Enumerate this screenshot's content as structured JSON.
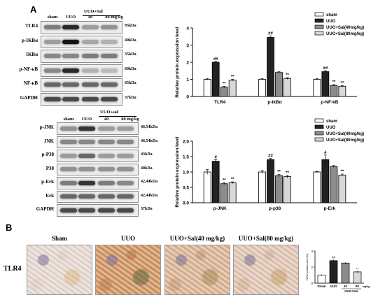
{
  "panel_a": {
    "letter": "A",
    "blot1": {
      "lanes": [
        "sham",
        "UUO",
        "40",
        "80 mg/kg"
      ],
      "treatment_label": "UUO+Sal",
      "rows": [
        {
          "name": "TLR4",
          "kda": "95kDa",
          "intensity": [
            0.5,
            0.9,
            0.35,
            0.4
          ]
        },
        {
          "name": "p-IKBα",
          "kda": "40kDa",
          "intensity": [
            0.35,
            1.0,
            0.3,
            0.25
          ]
        },
        {
          "name": "IKBα",
          "kda": "35kDa",
          "intensity": [
            0.45,
            0.45,
            0.5,
            0.5
          ]
        },
        {
          "name": "p-NF-κB",
          "kda": "60kDa",
          "intensity": [
            0.45,
            0.9,
            0.25,
            0.2
          ]
        },
        {
          "name": "NF-κB",
          "kda": "65kDa",
          "intensity": [
            0.6,
            0.6,
            0.6,
            0.6
          ]
        },
        {
          "name": "GAPDH",
          "kda": "37kDa",
          "intensity": [
            0.75,
            0.75,
            0.75,
            0.75
          ]
        }
      ]
    },
    "blot2": {
      "lanes": [
        "sham",
        "UUO",
        "40",
        "80 mg/kg"
      ],
      "treatment_label": "UUO+sal",
      "rows": [
        {
          "name": "p-JNK",
          "kda": "46,54kDa",
          "intensity": [
            0.4,
            0.85,
            0.35,
            0.35
          ]
        },
        {
          "name": "JNK",
          "kda": "46,54kDa",
          "intensity": [
            0.45,
            0.45,
            0.45,
            0.45
          ]
        },
        {
          "name": "p-P38",
          "kda": "43kDa",
          "intensity": [
            0.35,
            0.6,
            0.35,
            0.35
          ]
        },
        {
          "name": "P38",
          "kda": "40kDa",
          "intensity": [
            0.4,
            0.4,
            0.4,
            0.4
          ]
        },
        {
          "name": "p-Erk",
          "kda": "42,44kDa",
          "intensity": [
            0.5,
            0.85,
            0.5,
            0.45
          ]
        },
        {
          "name": "Erk",
          "kda": "42,44kDa",
          "intensity": [
            0.6,
            0.6,
            0.6,
            0.6
          ]
        },
        {
          "name": "GAPDH",
          "kda": "37kDa",
          "intensity": [
            0.75,
            0.75,
            0.75,
            0.75
          ]
        }
      ]
    }
  },
  "panel_b": {
    "letter": "B",
    "row_label": "TLR4",
    "micrograph_titles": [
      "Sham",
      "UUO",
      "UUO+Sal(40 mg/kg)",
      "UUO+Sal(80 mg/kg)"
    ],
    "stain_level": [
      0.15,
      0.9,
      0.55,
      0.35
    ]
  },
  "colors": {
    "sham": "#ffffff",
    "uuo": "#222222",
    "sal40": "#8c8c8c",
    "sal80": "#d8d8d8"
  },
  "chart_data": [
    {
      "type": "bar",
      "ylabel": "Relative protein expression level",
      "ylim": [
        0,
        4
      ],
      "yticks": [
        0,
        1,
        2,
        3,
        4
      ],
      "categories": [
        "TLR4",
        "p-IkBα",
        "p-NF-kB"
      ],
      "legend_position": "top-right",
      "series": [
        {
          "name": "sham",
          "values": [
            1.0,
            1.0,
            1.0
          ],
          "errors": [
            0.05,
            0.04,
            0.04
          ],
          "marks": [
            "",
            "",
            ""
          ]
        },
        {
          "name": "UUO",
          "values": [
            2.0,
            3.45,
            1.45
          ],
          "errors": [
            0.05,
            0.08,
            0.06
          ],
          "marks": [
            "##",
            "##",
            "##"
          ]
        },
        {
          "name": "UUO+Sal(40mg/kg)",
          "values": [
            0.55,
            1.4,
            0.65
          ],
          "errors": [
            0.04,
            0.05,
            0.04
          ],
          "marks": [
            "**",
            "",
            "**"
          ]
        },
        {
          "name": "UUO+Sal(80mg/kg)",
          "values": [
            0.95,
            1.05,
            0.6
          ],
          "errors": [
            0.05,
            0.05,
            0.04
          ],
          "marks": [
            "**",
            "**",
            "**"
          ]
        }
      ]
    },
    {
      "type": "bar",
      "ylabel": "Relative protein expression level",
      "ylim": [
        0,
        2.0
      ],
      "yticks": [
        0.0,
        0.5,
        1.0,
        1.5,
        2.0
      ],
      "categories": [
        "p-JNK",
        "p-p38",
        "p-Erk"
      ],
      "legend_position": "top-right",
      "series": [
        {
          "name": "sham",
          "values": [
            1.0,
            1.0,
            1.0
          ],
          "errors": [
            0.08,
            0.05,
            0.02
          ],
          "marks": [
            "",
            "",
            ""
          ]
        },
        {
          "name": "UUO",
          "values": [
            1.35,
            1.4,
            1.4
          ],
          "errors": [
            0.05,
            0.04,
            0.15
          ],
          "marks": [
            "#",
            "##",
            "#"
          ]
        },
        {
          "name": "UUO+Sal(40mg/kg)",
          "values": [
            0.62,
            0.88,
            1.18
          ],
          "errors": [
            0.03,
            0.04,
            0.03
          ],
          "marks": [
            "**",
            "**",
            ""
          ]
        },
        {
          "name": "UUO+Sal(80mg/kg)",
          "values": [
            0.65,
            0.85,
            0.9
          ],
          "errors": [
            0.03,
            0.04,
            0.03
          ],
          "marks": [
            "**",
            "**",
            "**"
          ]
        }
      ]
    },
    {
      "type": "bar",
      "ylabel": "TLR4 positive area (%)",
      "ylim": [
        0,
        4
      ],
      "yticks": [
        0,
        2,
        4
      ],
      "categories": [
        "Sham",
        "UUO",
        "40",
        "80"
      ],
      "xlabel_unit": "mg/kg",
      "group_label": "UUO+Sal",
      "series": [
        {
          "name": "TLR4",
          "values": [
            1.0,
            2.8,
            2.5,
            1.4
          ],
          "errors": [
            0.1,
            0.15,
            0.12,
            0.12
          ],
          "marks": [
            "",
            "##",
            "",
            "**"
          ]
        }
      ]
    }
  ]
}
